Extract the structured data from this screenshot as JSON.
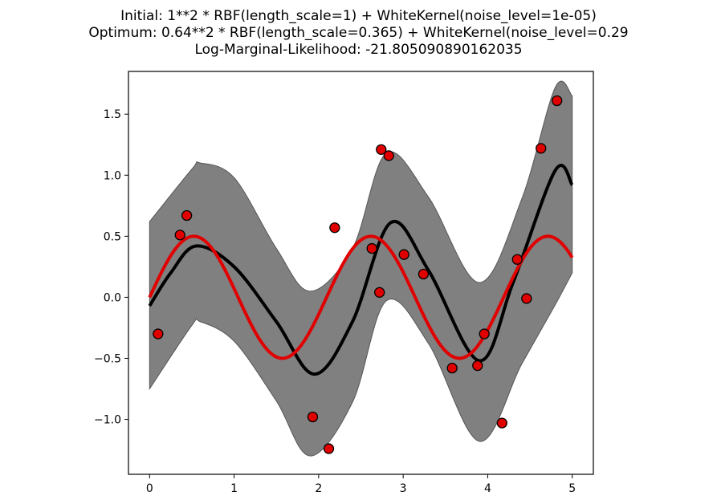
{
  "chart_data": {
    "type": "line",
    "title_lines": [
      "Initial: 1**2 * RBF(length_scale=1) + WhiteKernel(noise_level=1e-05)",
      "Optimum: 0.64**2 * RBF(length_scale=0.365) + WhiteKernel(noise_level=0.29",
      "Log-Marginal-Likelihood: -21.805090890162035"
    ],
    "xlim": [
      -0.25,
      5.25
    ],
    "ylim": [
      -1.45,
      1.85
    ],
    "xticks": [
      0,
      1,
      2,
      3,
      4,
      5
    ],
    "xtick_labels": [
      "0",
      "1",
      "2",
      "3",
      "4",
      "5"
    ],
    "yticks": [
      -1.0,
      -0.5,
      0.0,
      0.5,
      1.0,
      1.5
    ],
    "ytick_labels": [
      "−1.0",
      "−0.5",
      "0.0",
      "0.5",
      "1.0",
      "1.5"
    ],
    "grid": false,
    "colors": {
      "mean": "#000000",
      "band": "#808080",
      "true_function": "#e00000",
      "points_fill": "#e00000",
      "points_edge": "#000000"
    },
    "series": [
      {
        "kind": "band",
        "x": [
          0,
          0.5,
          0.6,
          1.0,
          1.5,
          1.9,
          2.4,
          2.8,
          3.3,
          3.9,
          4.4,
          4.8,
          5.0
        ],
        "lower": [
          -0.75,
          -0.23,
          -0.2,
          -0.36,
          -0.85,
          -1.3,
          -0.86,
          -0.03,
          -0.38,
          -1.18,
          -0.55,
          -0.06,
          0.2
        ],
        "upper": [
          0.62,
          1.05,
          1.1,
          0.98,
          0.4,
          0.05,
          0.4,
          1.18,
          0.82,
          0.12,
          0.8,
          1.72,
          1.65
        ]
      },
      {
        "kind": "line",
        "x": [
          0,
          0.25,
          0.55,
          1.0,
          1.5,
          1.95,
          2.4,
          2.85,
          3.3,
          3.9,
          4.3,
          4.8,
          5.0
        ],
        "y": [
          -0.07,
          0.2,
          0.42,
          0.25,
          -0.2,
          -0.63,
          -0.2,
          0.61,
          0.22,
          -0.52,
          0.12,
          1.04,
          0.92
        ]
      },
      {
        "kind": "line",
        "function": "sin(3x)/2",
        "x_range": [
          0,
          5
        ]
      },
      {
        "kind": "scatter",
        "x": [
          0.1,
          0.36,
          0.44,
          1.93,
          2.12,
          2.19,
          2.63,
          2.72,
          2.74,
          2.83,
          3.01,
          3.24,
          3.58,
          3.88,
          3.96,
          4.17,
          4.35,
          4.46,
          4.63,
          4.82
        ],
        "y": [
          -0.3,
          0.51,
          0.67,
          -0.98,
          -1.24,
          0.57,
          0.4,
          0.04,
          1.21,
          1.16,
          0.35,
          0.19,
          -0.58,
          -0.56,
          -0.3,
          -1.03,
          0.31,
          -0.01,
          1.22,
          1.61
        ]
      }
    ]
  }
}
